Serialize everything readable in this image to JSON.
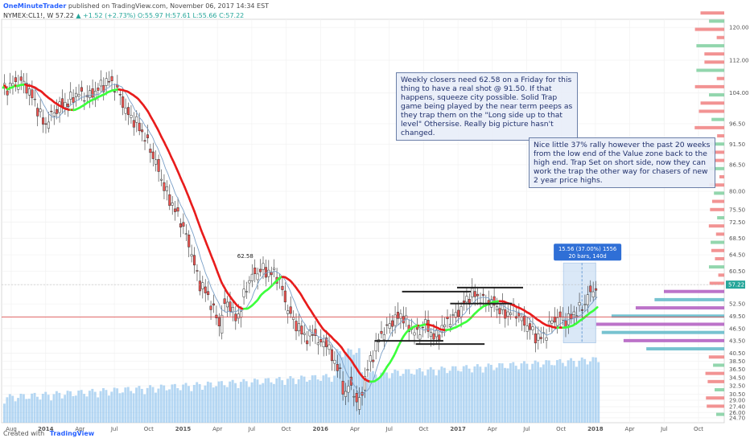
{
  "header": {
    "author": "OneMinuteTrader",
    "published": "published on TradingView.com, November 06, 2017 14:34 EST",
    "symbol": "NYMEX:CL1!, W",
    "last": "57.22",
    "change": "▲ +1.52 (+2.73%)",
    "ohlc": "O:55.97 H:57.61 L:55.66 C:57.22"
  },
  "footer": {
    "created": "Created with",
    "brand": "TradingView"
  },
  "notes": {
    "note1": "Weekly closers need 62.58 on a Friday for this thing to have a real shot @ 91.50. If that happens, squeeze city possible.  Solid Trap game being played by the near term peeps as they trap them on the \"Long side up to that level\" Othersise. Really big picture hasn't changed.",
    "note2": "Nice little 37% rally however the past 20 weeks from the low end of the Value zone back to the high end. Trap Set on short side, now they can work the trap the other way for chasers of new 2 year price highs."
  },
  "colors": {
    "up": "#26a69a",
    "down": "#ef5350",
    "ma_red": "#e81c1c",
    "ma_green": "#3cff3c",
    "ma_thin": "#7aa0c8",
    "volume": "#9cc9ef",
    "profile_purple": "#b05bc0",
    "profile_teal": "#5fb8c8",
    "profile_red": "#f08080",
    "hline": "#e04040"
  },
  "chart_data": {
    "type": "candlestick",
    "symbol": "NYMEX:CL1!",
    "interval": "W",
    "ylim": [
      23.5,
      122
    ],
    "y_ticks": [
      "120.00",
      "112.00",
      "104.00",
      "96.50",
      "91.50",
      "86.50",
      "80.00",
      "75.50",
      "72.50",
      "68.50",
      "64.50",
      "60.50",
      "57.22",
      "52.50",
      "49.50",
      "46.50",
      "43.50",
      "40.50",
      "38.50",
      "36.50",
      "34.50",
      "32.50",
      "30.50",
      "29.00",
      "27.40",
      "26.00",
      "24.70"
    ],
    "x_labels": [
      "Aug",
      "2014",
      "Apr",
      "Jul",
      "Oct",
      "2015",
      "Apr",
      "Jul",
      "Oct",
      "2016",
      "Apr",
      "Jul",
      "Oct",
      "2017",
      "Apr",
      "Jul",
      "Oct",
      "2018",
      "Apr",
      "Jul",
      "Oct"
    ],
    "last_price": 57.22,
    "close_path": [
      [
        0,
        104.5
      ],
      [
        6,
        106
      ],
      [
        12,
        107
      ],
      [
        18,
        105
      ],
      [
        24,
        101
      ],
      [
        30,
        96
      ],
      [
        36,
        99
      ],
      [
        42,
        101
      ],
      [
        48,
        102
      ],
      [
        54,
        104
      ],
      [
        60,
        103
      ],
      [
        66,
        104
      ],
      [
        72,
        106
      ],
      [
        78,
        107
      ],
      [
        84,
        104
      ],
      [
        90,
        99
      ],
      [
        96,
        97
      ],
      [
        100,
        95
      ],
      [
        106,
        91
      ],
      [
        112,
        86
      ],
      [
        118,
        80
      ],
      [
        124,
        76
      ],
      [
        130,
        72
      ],
      [
        136,
        66
      ],
      [
        142,
        58
      ],
      [
        148,
        55
      ],
      [
        154,
        50
      ],
      [
        158,
        47
      ],
      [
        160,
        52
      ],
      [
        164,
        53
      ],
      [
        168,
        49
      ],
      [
        172,
        50
      ],
      [
        176,
        56
      ],
      [
        180,
        59
      ],
      [
        184,
        60
      ],
      [
        188,
        61
      ],
      [
        194,
        60
      ],
      [
        198,
        60
      ],
      [
        202,
        57
      ],
      [
        206,
        52
      ],
      [
        210,
        49
      ],
      [
        214,
        47
      ],
      [
        218,
        45
      ],
      [
        222,
        44
      ],
      [
        226,
        46
      ],
      [
        230,
        42
      ],
      [
        234,
        44
      ],
      [
        238,
        40
      ],
      [
        242,
        38
      ],
      [
        246,
        34
      ],
      [
        248,
        30
      ],
      [
        252,
        33
      ],
      [
        256,
        30
      ],
      [
        258,
        27
      ],
      [
        262,
        33
      ],
      [
        266,
        38
      ],
      [
        270,
        41
      ],
      [
        274,
        45
      ],
      [
        278,
        46
      ],
      [
        282,
        48
      ],
      [
        286,
        49
      ],
      [
        290,
        50
      ],
      [
        294,
        47
      ],
      [
        298,
        46
      ],
      [
        302,
        45
      ],
      [
        306,
        48
      ],
      [
        310,
        46
      ],
      [
        314,
        44
      ],
      [
        318,
        46
      ],
      [
        322,
        48
      ],
      [
        326,
        49
      ],
      [
        330,
        50
      ],
      [
        334,
        52
      ],
      [
        338,
        54
      ],
      [
        342,
        55
      ],
      [
        346,
        54
      ],
      [
        350,
        53
      ],
      [
        354,
        53
      ],
      [
        358,
        52
      ],
      [
        362,
        51
      ],
      [
        366,
        50
      ],
      [
        370,
        51
      ],
      [
        374,
        50
      ],
      [
        378,
        48
      ],
      [
        382,
        47
      ],
      [
        386,
        45
      ],
      [
        390,
        44
      ],
      [
        394,
        45
      ],
      [
        398,
        48
      ],
      [
        402,
        49
      ],
      [
        406,
        49
      ],
      [
        410,
        48
      ],
      [
        414,
        50
      ],
      [
        418,
        51
      ],
      [
        422,
        52
      ],
      [
        426,
        55
      ],
      [
        430,
        56
      ],
      [
        432,
        57.22
      ]
    ],
    "key_levels": {
      "target": 91.5,
      "weekly_close_needed": 62.58,
      "horizontal_line": 49.3
    },
    "annotations": {
      "price_label": "62.58",
      "measure_label": "15.56 (37.00%) 1556",
      "measure_sub": "20 bars, 140d"
    }
  }
}
